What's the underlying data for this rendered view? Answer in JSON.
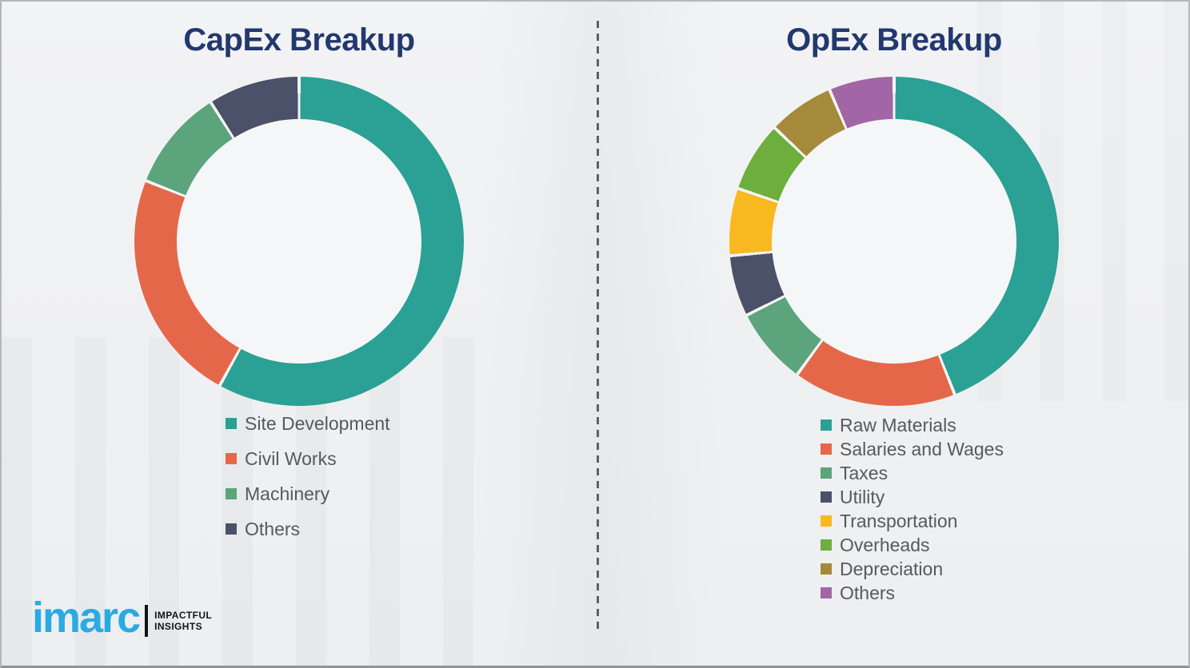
{
  "theme": {
    "title_color": "#22386e",
    "legend_text_color": "#595959",
    "brand_blue": "#29abe2",
    "divider_color": "#5c6167",
    "hole_color": "#f5f6f8",
    "separator_color": "#f3f4f6"
  },
  "logo": {
    "brand": "imarc",
    "tagline_line1": "IMPACTFUL",
    "tagline_line2": "INSIGHTS"
  },
  "chart_data": [
    {
      "type": "pie",
      "variant": "donut",
      "title": "CapEx Breakup",
      "labels": [
        "Site Development",
        "Civil Works",
        "Machinery",
        "Others"
      ],
      "values": [
        58,
        23,
        10,
        9
      ],
      "colors": [
        "#2ba094",
        "#e5674a",
        "#5ca47c",
        "#4a5168"
      ],
      "unit": "percent-estimated-from-arc-angles",
      "start_angle_deg": 0,
      "direction": "clockwise",
      "legend_position": "below"
    },
    {
      "type": "pie",
      "variant": "donut",
      "title": "OpEx Breakup",
      "labels": [
        "Raw Materials",
        "Salaries and Wages",
        "Taxes",
        "Utility",
        "Transportation",
        "Overheads",
        "Depreciation",
        "Others"
      ],
      "values": [
        44,
        16,
        7.6,
        6,
        6.6,
        6.9,
        6.5,
        6.4
      ],
      "colors": [
        "#2ba094",
        "#e5674a",
        "#5ca47c",
        "#4a5168",
        "#f8b820",
        "#6dae3d",
        "#a58a3b",
        "#a265a5"
      ],
      "unit": "percent-estimated-from-arc-angles",
      "start_angle_deg": 0,
      "direction": "clockwise",
      "legend_position": "below"
    }
  ]
}
